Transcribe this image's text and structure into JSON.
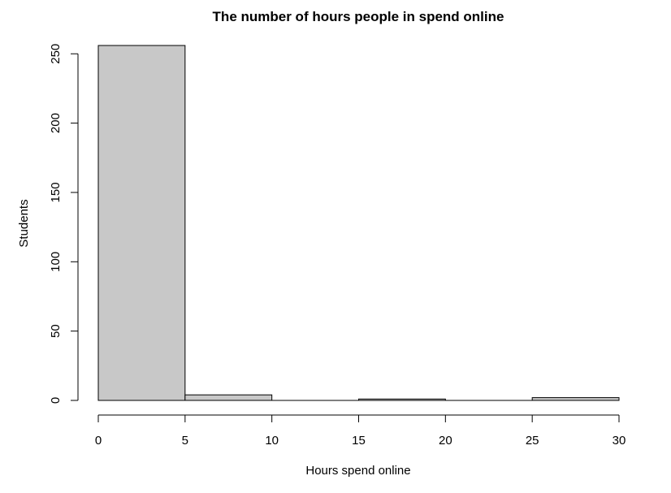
{
  "chart_data": {
    "type": "bar",
    "subtype": "histogram",
    "title": "The number of hours people in spend online",
    "xlabel": "Hours spend online",
    "ylabel": "Students",
    "bins": [
      {
        "start": 0,
        "end": 5,
        "count": 256
      },
      {
        "start": 5,
        "end": 10,
        "count": 4
      },
      {
        "start": 10,
        "end": 15,
        "count": 0
      },
      {
        "start": 15,
        "end": 20,
        "count": 1
      },
      {
        "start": 20,
        "end": 25,
        "count": 0
      },
      {
        "start": 25,
        "end": 30,
        "count": 2
      }
    ],
    "xlim": [
      0,
      30
    ],
    "ylim": [
      0,
      256
    ],
    "xticks": [
      "0",
      "5",
      "10",
      "15",
      "20",
      "25",
      "30"
    ],
    "yticks": [
      "0",
      "50",
      "100",
      "150",
      "200",
      "250"
    ],
    "bar_fill": "#c8c8c8",
    "bar_stroke": "#000000",
    "grid": false,
    "legend": "none"
  }
}
